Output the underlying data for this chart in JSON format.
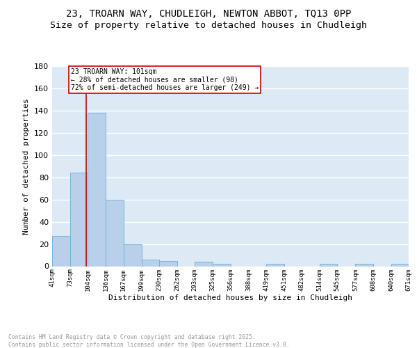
{
  "title1": "23, TROARN WAY, CHUDLEIGH, NEWTON ABBOT, TQ13 0PP",
  "title2": "Size of property relative to detached houses in Chudleigh",
  "xlabel": "Distribution of detached houses by size in Chudleigh",
  "ylabel": "Number of detached properties",
  "bar_values": [
    27,
    84,
    138,
    60,
    20,
    6,
    5,
    0,
    4,
    2,
    0,
    0,
    2,
    0,
    0,
    2,
    0,
    2,
    0,
    2
  ],
  "bin_labels": [
    "41sqm",
    "73sqm",
    "104sqm",
    "136sqm",
    "167sqm",
    "199sqm",
    "230sqm",
    "262sqm",
    "293sqm",
    "325sqm",
    "356sqm",
    "388sqm",
    "419sqm",
    "451sqm",
    "482sqm",
    "514sqm",
    "545sqm",
    "577sqm",
    "608sqm",
    "640sqm",
    "671sqm"
  ],
  "bar_edges": [
    41,
    73,
    104,
    136,
    167,
    199,
    230,
    262,
    293,
    325,
    356,
    388,
    419,
    451,
    482,
    514,
    545,
    577,
    608,
    640,
    671
  ],
  "bar_color": "#b8d0ea",
  "bar_edge_color": "#6aaed6",
  "bg_color": "#ddeaf6",
  "grid_color": "#ffffff",
  "annotation_text": "23 TROARN WAY: 101sqm\n← 28% of detached houses are smaller (98)\n72% of semi-detached houses are larger (249) →",
  "annotation_box_color": "#ffffff",
  "annotation_border_color": "#cc0000",
  "vline_x": 101,
  "vline_color": "#cc0000",
  "ylim": [
    0,
    180
  ],
  "yticks": [
    0,
    20,
    40,
    60,
    80,
    100,
    120,
    140,
    160,
    180
  ],
  "footer_text": "Contains HM Land Registry data © Crown copyright and database right 2025.\nContains public sector information licensed under the Open Government Licence v3.0.",
  "title_fontsize": 10,
  "subtitle_fontsize": 9.5
}
